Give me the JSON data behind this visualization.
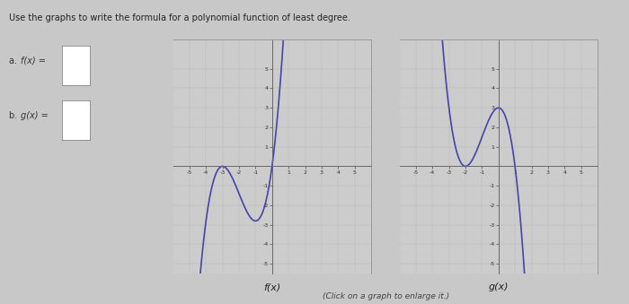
{
  "title": "Use the graphs to write the formula for a polynomial function of least degree.",
  "fig_bg": "#c8c8c8",
  "plot_bg": "#cccccc",
  "graph_border": "#999999",
  "line_color": "#4444aa",
  "label_f": "f(x)",
  "label_g": "g(x)",
  "text_a": "a.  f(x) =",
  "text_b": "b.  g(x) =",
  "click_text": "(Click on a graph to enlarge it.)",
  "xmin": -6,
  "xmax": 6,
  "ymin": -5.5,
  "ymax": 6.5,
  "xticks": [
    -5,
    -4,
    -3,
    -2,
    -1,
    1,
    2,
    3,
    4,
    5
  ],
  "yticks": [
    -5,
    -4,
    -3,
    -2,
    -1,
    1,
    2,
    3,
    4,
    5
  ]
}
